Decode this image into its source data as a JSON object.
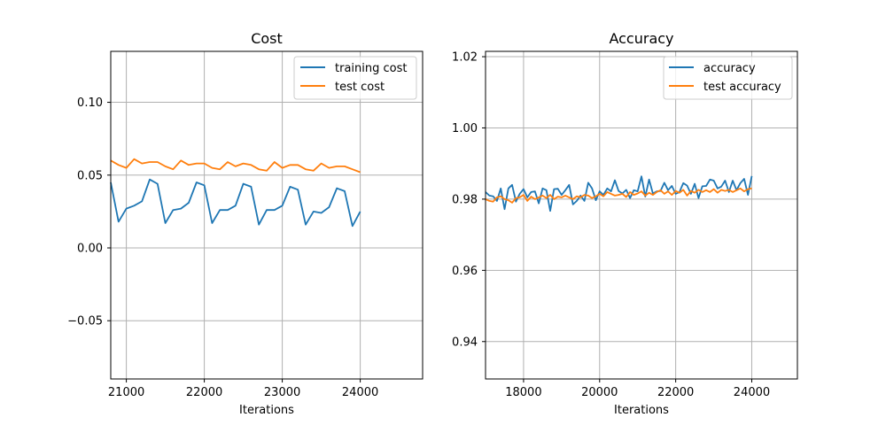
{
  "colors": {
    "series_blue": "#1f77b4",
    "series_orange": "#ff7f0e",
    "grid": "#b0b0b0"
  },
  "chart_data": [
    {
      "type": "line",
      "title": "Cost",
      "xlabel": "Iterations",
      "ylabel": "",
      "xlim": [
        20800,
        24800
      ],
      "ylim": [
        -0.09,
        0.135
      ],
      "xticks": [
        21000,
        22000,
        23000,
        24000
      ],
      "xtick_labels": [
        "21000",
        "22000",
        "23000",
        "24000"
      ],
      "yticks": [
        -0.05,
        0.0,
        0.05,
        0.1
      ],
      "ytick_labels": [
        "−0.05",
        "0.00",
        "0.05",
        "0.10"
      ],
      "grid": true,
      "legend_position": "top-right",
      "series": [
        {
          "name": "training cost",
          "color": "#1f77b4",
          "x": [
            20800,
            20900,
            21000,
            21100,
            21200,
            21300,
            21400,
            21500,
            21600,
            21700,
            21800,
            21900,
            22000,
            22100,
            22200,
            22300,
            22400,
            22500,
            22600,
            22700,
            22800,
            22900,
            23000,
            23100,
            23200,
            23300,
            23400,
            23500,
            23600,
            23700,
            23800,
            23900,
            24000
          ],
          "y": [
            0.045,
            0.018,
            0.027,
            0.029,
            0.032,
            0.047,
            0.044,
            0.017,
            0.026,
            0.027,
            0.031,
            0.045,
            0.043,
            0.017,
            0.026,
            0.026,
            0.029,
            0.044,
            0.042,
            0.016,
            0.026,
            0.026,
            0.029,
            0.042,
            0.04,
            0.016,
            0.025,
            0.024,
            0.028,
            0.041,
            0.039,
            0.015,
            0.025
          ]
        },
        {
          "name": "test cost",
          "color": "#ff7f0e",
          "x": [
            20800,
            20900,
            21000,
            21100,
            21200,
            21300,
            21400,
            21500,
            21600,
            21700,
            21800,
            21900,
            22000,
            22100,
            22200,
            22300,
            22400,
            22500,
            22600,
            22700,
            22800,
            22900,
            23000,
            23100,
            23200,
            23300,
            23400,
            23500,
            23600,
            23700,
            23800,
            23900,
            24000
          ],
          "y": [
            0.06,
            0.057,
            0.055,
            0.061,
            0.058,
            0.059,
            0.059,
            0.056,
            0.054,
            0.06,
            0.057,
            0.058,
            0.058,
            0.055,
            0.054,
            0.059,
            0.056,
            0.058,
            0.057,
            0.054,
            0.053,
            0.059,
            0.055,
            0.057,
            0.057,
            0.054,
            0.053,
            0.058,
            0.055,
            0.056,
            0.056,
            0.054,
            0.052
          ]
        }
      ]
    },
    {
      "type": "line",
      "title": "Accuracy",
      "xlabel": "Iterations",
      "ylabel": "",
      "xlim": [
        17000,
        25200
      ],
      "ylim": [
        0.9295,
        1.0215
      ],
      "xticks": [
        18000,
        20000,
        22000,
        24000
      ],
      "xtick_labels": [
        "18000",
        "20000",
        "22000",
        "24000"
      ],
      "yticks": [
        0.94,
        0.96,
        0.98,
        1.0,
        1.02
      ],
      "ytick_labels": [
        "0.94",
        "0.96",
        "0.98",
        "1.00",
        "1.02"
      ],
      "grid": true,
      "legend_position": "top-right",
      "series": [
        {
          "name": "accuracy",
          "color": "#1f77b4",
          "x": [
            17000,
            17100,
            17200,
            17300,
            17400,
            17500,
            17600,
            17700,
            17800,
            17900,
            18000,
            18100,
            18200,
            18300,
            18400,
            18500,
            18600,
            18700,
            18800,
            18900,
            19000,
            19100,
            19200,
            19300,
            19400,
            19500,
            19600,
            19700,
            19800,
            19900,
            20000,
            20100,
            20200,
            20300,
            20400,
            20500,
            20600,
            20700,
            20800,
            20900,
            21000,
            21100,
            21200,
            21300,
            21400,
            21500,
            21600,
            21700,
            21800,
            21900,
            22000,
            22100,
            22200,
            22300,
            22400,
            22500,
            22600,
            22700,
            22800,
            22900,
            23000,
            23100,
            23200,
            23300,
            23400,
            23500,
            23600,
            23700,
            23800,
            23900,
            24000
          ],
          "y": [
            0.982,
            0.981,
            0.9808,
            0.9795,
            0.983,
            0.9772,
            0.983,
            0.984,
            0.9793,
            0.9815,
            0.9828,
            0.9805,
            0.982,
            0.9822,
            0.9788,
            0.983,
            0.9825,
            0.9767,
            0.9828,
            0.9829,
            0.9812,
            0.9825,
            0.984,
            0.9785,
            0.9795,
            0.981,
            0.9795,
            0.9846,
            0.983,
            0.9797,
            0.9822,
            0.9812,
            0.983,
            0.9822,
            0.9853,
            0.9823,
            0.9816,
            0.9826,
            0.9803,
            0.9825,
            0.9822,
            0.9864,
            0.9807,
            0.9855,
            0.9816,
            0.9822,
            0.9823,
            0.9846,
            0.9825,
            0.9837,
            0.9815,
            0.982,
            0.9845,
            0.9838,
            0.9815,
            0.9843,
            0.9803,
            0.9836,
            0.9837,
            0.9855,
            0.9852,
            0.983,
            0.9835,
            0.9852,
            0.982,
            0.9852,
            0.9825,
            0.9845,
            0.9857,
            0.9812,
            0.9865
          ]
        },
        {
          "name": "test accuracy",
          "color": "#ff7f0e",
          "x": [
            17000,
            17100,
            17200,
            17300,
            17400,
            17500,
            17600,
            17700,
            17800,
            17900,
            18000,
            18100,
            18200,
            18300,
            18400,
            18500,
            18600,
            18700,
            18800,
            18900,
            19000,
            19100,
            19200,
            19300,
            19400,
            19500,
            19600,
            19700,
            19800,
            19900,
            20000,
            20100,
            20200,
            20300,
            20400,
            20500,
            20600,
            20700,
            20800,
            20900,
            21000,
            21100,
            21200,
            21300,
            21400,
            21500,
            21600,
            21700,
            21800,
            21900,
            22000,
            22100,
            22200,
            22300,
            22400,
            22500,
            22600,
            22700,
            22800,
            22900,
            23000,
            23100,
            23200,
            23300,
            23400,
            23500,
            23600,
            23700,
            23800,
            23900,
            24000
          ],
          "y": [
            0.98,
            0.9795,
            0.9793,
            0.9805,
            0.9808,
            0.98,
            0.9797,
            0.979,
            0.9803,
            0.9805,
            0.9812,
            0.9795,
            0.9807,
            0.98,
            0.9805,
            0.981,
            0.9803,
            0.9812,
            0.98,
            0.9807,
            0.9805,
            0.981,
            0.9805,
            0.98,
            0.9808,
            0.9805,
            0.9812,
            0.981,
            0.9803,
            0.9808,
            0.9815,
            0.9808,
            0.982,
            0.9815,
            0.981,
            0.9812,
            0.9815,
            0.9806,
            0.982,
            0.9812,
            0.9816,
            0.9822,
            0.981,
            0.9818,
            0.9812,
            0.982,
            0.9825,
            0.9815,
            0.9822,
            0.9812,
            0.9823,
            0.9818,
            0.9826,
            0.981,
            0.9823,
            0.9818,
            0.9826,
            0.982,
            0.9825,
            0.982,
            0.9828,
            0.9818,
            0.9826,
            0.9823,
            0.9826,
            0.982,
            0.9825,
            0.983,
            0.9822,
            0.9828,
            0.983
          ]
        }
      ]
    }
  ]
}
